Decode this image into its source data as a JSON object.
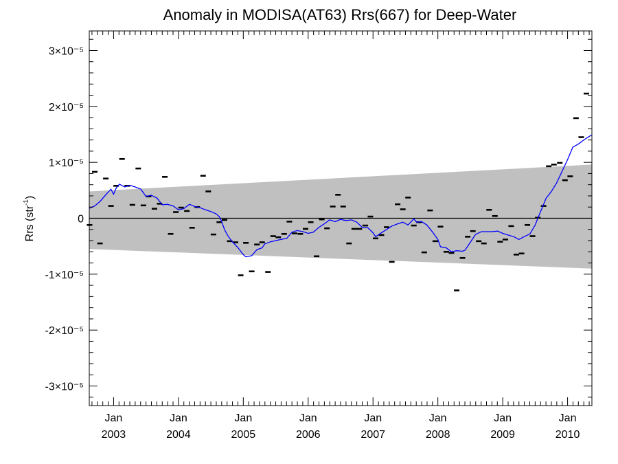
{
  "chart_data": {
    "type": "line",
    "title": "Anomaly in MODISA(AT63) Rrs(667) for Deep-Water",
    "xlabel": "",
    "ylabel": "Rrs (str⁻¹)",
    "x_range": [
      2002.625,
      2010.375
    ],
    "ylim": [
      -3.35e-05,
      3.35e-05
    ],
    "y_ticks": [
      {
        "value": 3e-05,
        "label": "3×10⁻⁵"
      },
      {
        "value": 2e-05,
        "label": "2×10⁻⁵"
      },
      {
        "value": 1e-05,
        "label": "1×10⁻⁵"
      },
      {
        "value": 0,
        "label": "0"
      },
      {
        "value": -1e-05,
        "label": "-1×10⁻⁵"
      },
      {
        "value": -2e-05,
        "label": "-2×10⁻⁵"
      },
      {
        "value": -3e-05,
        "label": "-3×10⁻⁵"
      }
    ],
    "x_ticks": [
      {
        "value": 2003,
        "month": "Jan",
        "year": "2003"
      },
      {
        "value": 2004,
        "month": "Jan",
        "year": "2004"
      },
      {
        "value": 2005,
        "month": "Jan",
        "year": "2005"
      },
      {
        "value": 2006,
        "month": "Jan",
        "year": "2006"
      },
      {
        "value": 2007,
        "month": "Jan",
        "year": "2007"
      },
      {
        "value": 2008,
        "month": "Jan",
        "year": "2008"
      },
      {
        "value": 2009,
        "month": "Jan",
        "year": "2009"
      },
      {
        "value": 2010,
        "month": "Jan",
        "year": "2010"
      }
    ],
    "band": {
      "color": "#c0c0c0",
      "upper": [
        [
          2002.625,
          4.8e-06
        ],
        [
          2010.375,
          9.6e-06
        ]
      ],
      "lower": [
        [
          2002.625,
          -5.5e-06
        ],
        [
          2010.375,
          -9e-06
        ]
      ]
    },
    "zero_line": true,
    "grid": false,
    "series": [
      {
        "kind": "points",
        "color": "#000000",
        "marker": "dash",
        "points": [
          [
            2002.63,
            -1.2e-06
          ],
          [
            2002.71,
            8.3e-06
          ],
          [
            2002.79,
            -4.5e-06
          ],
          [
            2002.88,
            7.1e-06
          ],
          [
            2002.96,
            2.2e-06
          ],
          [
            2003.04,
            5.8e-06
          ],
          [
            2003.13,
            1.06e-05
          ],
          [
            2003.21,
            5.8e-06
          ],
          [
            2003.29,
            2.4e-06
          ],
          [
            2003.38,
            8.9e-06
          ],
          [
            2003.46,
            2.3e-06
          ],
          [
            2003.54,
            3.9e-06
          ],
          [
            2003.63,
            1.7e-06
          ],
          [
            2003.71,
            2.6e-06
          ],
          [
            2003.79,
            7.4e-06
          ],
          [
            2003.88,
            -2.8e-06
          ],
          [
            2003.96,
            1.1e-06
          ],
          [
            2004.04,
            1.9e-06
          ],
          [
            2004.13,
            1.3e-06
          ],
          [
            2004.21,
            -1.7e-06
          ],
          [
            2004.29,
            2e-06
          ],
          [
            2004.38,
            7.6e-06
          ],
          [
            2004.46,
            4.8e-06
          ],
          [
            2004.54,
            -2.9e-06
          ],
          [
            2004.63,
            -7e-07
          ],
          [
            2004.71,
            -3e-07
          ],
          [
            2004.79,
            -4.1e-06
          ],
          [
            2004.88,
            -4.3e-06
          ],
          [
            2004.96,
            -1.02e-05
          ],
          [
            2005.04,
            -4.4e-06
          ],
          [
            2005.13,
            -9.5e-06
          ],
          [
            2005.21,
            -4.7e-06
          ],
          [
            2005.29,
            -4.3e-06
          ],
          [
            2005.38,
            -9.6e-06
          ],
          [
            2005.46,
            -3.2e-06
          ],
          [
            2005.54,
            -3.4e-06
          ],
          [
            2005.63,
            -2.8e-06
          ],
          [
            2005.71,
            -6e-07
          ],
          [
            2005.79,
            -2.7e-06
          ],
          [
            2005.88,
            -2.8e-06
          ],
          [
            2005.96,
            -1.9e-06
          ],
          [
            2006.04,
            -7e-07
          ],
          [
            2006.13,
            -6.8e-06
          ],
          [
            2006.21,
            -2e-07
          ],
          [
            2006.29,
            -1.8e-06
          ],
          [
            2006.38,
            2.1e-06
          ],
          [
            2006.46,
            4.2e-06
          ],
          [
            2006.54,
            2.1e-06
          ],
          [
            2006.63,
            -4.5e-06
          ],
          [
            2006.71,
            -1.9e-06
          ],
          [
            2006.79,
            -1.9e-06
          ],
          [
            2006.88,
            -1.3e-06
          ],
          [
            2006.96,
            3e-07
          ],
          [
            2007.04,
            -3.6e-06
          ],
          [
            2007.13,
            -3e-06
          ],
          [
            2007.21,
            -1.6e-06
          ],
          [
            2007.29,
            -7.8e-06
          ],
          [
            2007.38,
            2.5e-06
          ],
          [
            2007.46,
            1.6e-06
          ],
          [
            2007.54,
            3.7e-06
          ],
          [
            2007.63,
            -1.3e-06
          ],
          [
            2007.71,
            -7e-07
          ],
          [
            2007.79,
            -6.1e-06
          ],
          [
            2007.88,
            1.4e-06
          ],
          [
            2007.96,
            -4.1e-06
          ],
          [
            2008.04,
            -1.5e-06
          ],
          [
            2008.13,
            -6e-06
          ],
          [
            2008.21,
            -6.2e-06
          ],
          [
            2008.29,
            -1.29e-05
          ],
          [
            2008.38,
            -7.1e-06
          ],
          [
            2008.46,
            -3.3e-06
          ],
          [
            2008.54,
            -2.3e-06
          ],
          [
            2008.63,
            -4.1e-06
          ],
          [
            2008.71,
            -4.5e-06
          ],
          [
            2008.79,
            1.5e-06
          ],
          [
            2008.88,
            4e-07
          ],
          [
            2008.96,
            -4.2e-06
          ],
          [
            2009.04,
            -3.8e-06
          ],
          [
            2009.13,
            -1.4e-06
          ],
          [
            2009.21,
            -6.5e-06
          ],
          [
            2009.29,
            -6.3e-06
          ],
          [
            2009.38,
            -1.2e-06
          ],
          [
            2009.46,
            -3.2e-06
          ],
          [
            2009.54,
            1e-07
          ],
          [
            2009.63,
            2.2e-06
          ],
          [
            2009.71,
            9.3e-06
          ],
          [
            2009.79,
            9.6e-06
          ],
          [
            2009.88,
            9.9e-06
          ],
          [
            2009.96,
            6.8e-06
          ],
          [
            2010.04,
            7.5e-06
          ],
          [
            2010.13,
            1.79e-05
          ],
          [
            2010.21,
            1.45e-05
          ],
          [
            2010.29,
            2.23e-05
          ]
        ]
      },
      {
        "kind": "line",
        "color": "#0000ff",
        "points": [
          [
            2002.63,
            1.8e-06
          ],
          [
            2002.71,
            2.2e-06
          ],
          [
            2002.79,
            3e-06
          ],
          [
            2002.88,
            4.2e-06
          ],
          [
            2002.96,
            5.2e-06
          ],
          [
            2003.0,
            4.3e-06
          ],
          [
            2003.04,
            5.4e-06
          ],
          [
            2003.09,
            6.1e-06
          ],
          [
            2003.17,
            5.6e-06
          ],
          [
            2003.25,
            5.9e-06
          ],
          [
            2003.33,
            5.6e-06
          ],
          [
            2003.42,
            5.2e-06
          ],
          [
            2003.5,
            3.9e-06
          ],
          [
            2003.58,
            4.1e-06
          ],
          [
            2003.67,
            3.6e-06
          ],
          [
            2003.75,
            2.4e-06
          ],
          [
            2003.83,
            2.5e-06
          ],
          [
            2003.92,
            2.2e-06
          ],
          [
            2004.0,
            1.5e-06
          ],
          [
            2004.08,
            1.7e-06
          ],
          [
            2004.17,
            2.5e-06
          ],
          [
            2004.25,
            2.1e-06
          ],
          [
            2004.33,
            1.9e-06
          ],
          [
            2004.42,
            1.5e-06
          ],
          [
            2004.5,
            1.2e-06
          ],
          [
            2004.58,
            8e-07
          ],
          [
            2004.63,
            3e-07
          ],
          [
            2004.67,
            -7e-07
          ],
          [
            2004.71,
            -2e-06
          ],
          [
            2004.75,
            -2.9e-06
          ],
          [
            2004.79,
            -3.6e-06
          ],
          [
            2004.83,
            -4.2e-06
          ],
          [
            2004.88,
            -4.8e-06
          ],
          [
            2004.92,
            -5.3e-06
          ],
          [
            2004.96,
            -5.9e-06
          ],
          [
            2005.0,
            -6.5e-06
          ],
          [
            2005.04,
            -6.9e-06
          ],
          [
            2005.13,
            -6.7e-06
          ],
          [
            2005.21,
            -5.6e-06
          ],
          [
            2005.29,
            -5.3e-06
          ],
          [
            2005.33,
            -4.6e-06
          ],
          [
            2005.42,
            -4.2e-06
          ],
          [
            2005.5,
            -4e-06
          ],
          [
            2005.58,
            -3.8e-06
          ],
          [
            2005.67,
            -3.6e-06
          ],
          [
            2005.75,
            -2.5e-06
          ],
          [
            2005.83,
            -2.2e-06
          ],
          [
            2005.92,
            -2.4e-06
          ],
          [
            2006.0,
            -2.7e-06
          ],
          [
            2006.08,
            -2.5e-06
          ],
          [
            2006.17,
            -1.6e-06
          ],
          [
            2006.25,
            -1e-06
          ],
          [
            2006.33,
            -3e-07
          ],
          [
            2006.42,
            -6e-07
          ],
          [
            2006.5,
            -2e-07
          ],
          [
            2006.58,
            -4e-07
          ],
          [
            2006.67,
            -3e-07
          ],
          [
            2006.75,
            -7e-07
          ],
          [
            2006.83,
            -1.6e-06
          ],
          [
            2006.92,
            -1.7e-06
          ],
          [
            2007.0,
            -2.6e-06
          ],
          [
            2007.04,
            -3.3e-06
          ],
          [
            2007.13,
            -2.6e-06
          ],
          [
            2007.21,
            -2e-06
          ],
          [
            2007.29,
            -1.4e-06
          ],
          [
            2007.38,
            -1e-06
          ],
          [
            2007.46,
            -7e-07
          ],
          [
            2007.54,
            -1.2e-06
          ],
          [
            2007.63,
            -1e-07
          ],
          [
            2007.67,
            -7e-07
          ],
          [
            2007.75,
            -6e-07
          ],
          [
            2007.83,
            -1.2e-06
          ],
          [
            2007.92,
            -2.5e-06
          ],
          [
            2008.0,
            -3.8e-06
          ],
          [
            2008.04,
            -5.1e-06
          ],
          [
            2008.13,
            -5.3e-06
          ],
          [
            2008.21,
            -6e-06
          ],
          [
            2008.29,
            -5.8e-06
          ],
          [
            2008.38,
            -5.9e-06
          ],
          [
            2008.42,
            -5.7e-06
          ],
          [
            2008.5,
            -4.3e-06
          ],
          [
            2008.58,
            -2.9e-06
          ],
          [
            2008.67,
            -2.4e-06
          ],
          [
            2008.75,
            -2.4e-06
          ],
          [
            2008.83,
            -2.4e-06
          ],
          [
            2008.92,
            -2.3e-06
          ],
          [
            2009.0,
            -2.7e-06
          ],
          [
            2009.08,
            -3e-06
          ],
          [
            2009.17,
            -3.3e-06
          ],
          [
            2009.25,
            -3.8e-06
          ],
          [
            2009.33,
            -3.3e-06
          ],
          [
            2009.42,
            -2.8e-06
          ],
          [
            2009.5,
            -1.2e-06
          ],
          [
            2009.58,
            1.1e-06
          ],
          [
            2009.67,
            3.6e-06
          ],
          [
            2009.75,
            4.8e-06
          ],
          [
            2009.83,
            6.3e-06
          ],
          [
            2009.92,
            8.5e-06
          ],
          [
            2010.0,
            1.05e-05
          ],
          [
            2010.08,
            1.27e-05
          ],
          [
            2010.17,
            1.33e-05
          ],
          [
            2010.25,
            1.4e-05
          ],
          [
            2010.33,
            1.46e-05
          ],
          [
            2010.375,
            1.49e-05
          ]
        ]
      }
    ]
  }
}
